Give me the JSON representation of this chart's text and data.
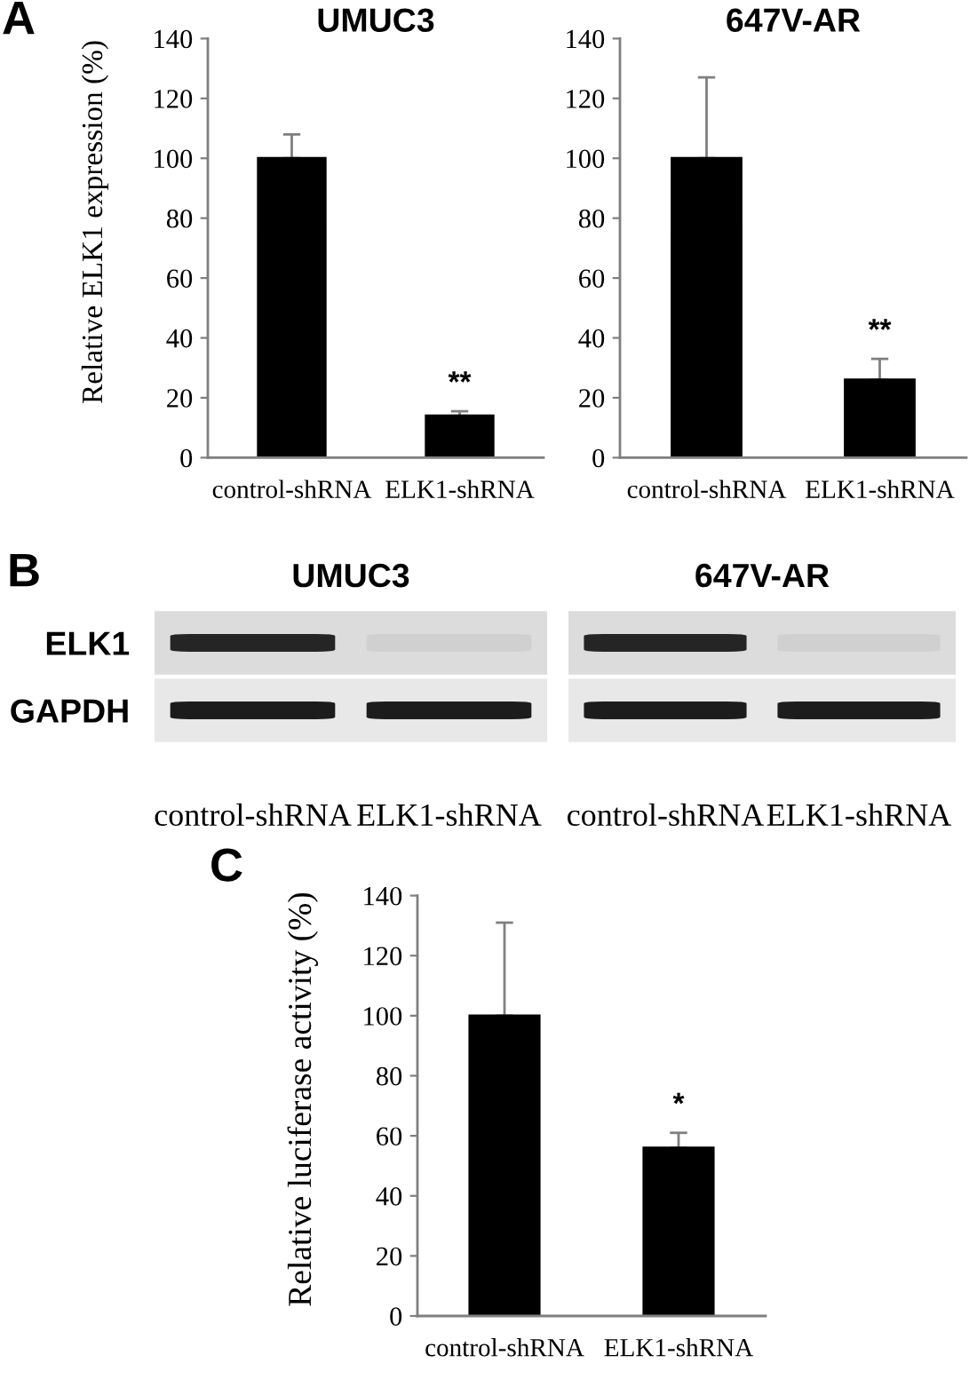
{
  "chart_data": [
    {
      "type": "bar",
      "title": "UMUC3",
      "ylabel": "Relative ELK1 expression (%)",
      "categories": [
        "control-shRNA",
        "ELK1-shRNA"
      ],
      "values": [
        100,
        14
      ],
      "errors": [
        [
          100,
          108
        ],
        [
          14,
          15.5
        ]
      ],
      "color": "#000000",
      "ylim": [
        0,
        140
      ],
      "yticks": [
        0,
        20,
        40,
        60,
        80,
        100,
        120,
        140
      ],
      "annotations": [
        "A",
        {
          "text": "**",
          "x": "ELK1-shRNA",
          "y": 14
        }
      ]
    },
    {
      "type": "bar",
      "title": "647V-AR",
      "categories": [
        "control-shRNA",
        "ELK1-shRNA"
      ],
      "values": [
        100,
        26
      ],
      "errors": [
        [
          100,
          127
        ],
        [
          26,
          33
        ]
      ],
      "color": "#000000",
      "ylim": [
        0,
        140
      ],
      "yticks": [
        0,
        20,
        40,
        60,
        80,
        100,
        120,
        140
      ],
      "annotations": [
        {
          "text": "**",
          "x": "ELK1-shRNA",
          "y": 26
        }
      ]
    },
    {
      "type": "other",
      "title": "UMUC3",
      "categories": [
        "control-shRNA",
        "ELK1-shRNA"
      ],
      "y_categories": [
        "ELK1",
        "GAPDH"
      ],
      "annotations": [
        "B"
      ]
    },
    {
      "type": "other",
      "title": "647V-AR",
      "categories": [
        "control-shRNA",
        "ELK1-shRNA"
      ],
      "y_categories": [
        null,
        null
      ]
    },
    {
      "type": "bar",
      "ylabel": "Relative luciferase activity (%)",
      "categories": [
        "control-shRNA",
        "ELK1-shRNA"
      ],
      "values": [
        100,
        56
      ],
      "errors": [
        [
          100,
          131
        ],
        [
          56,
          61
        ]
      ],
      "color": "#000000",
      "ylim": [
        0,
        140
      ],
      "yticks": [
        0,
        20,
        40,
        60,
        80,
        100,
        120,
        140
      ],
      "annotations": [
        "C",
        {
          "text": "*",
          "x": "ELK1-shRNA",
          "y": 56
        }
      ]
    }
  ]
}
